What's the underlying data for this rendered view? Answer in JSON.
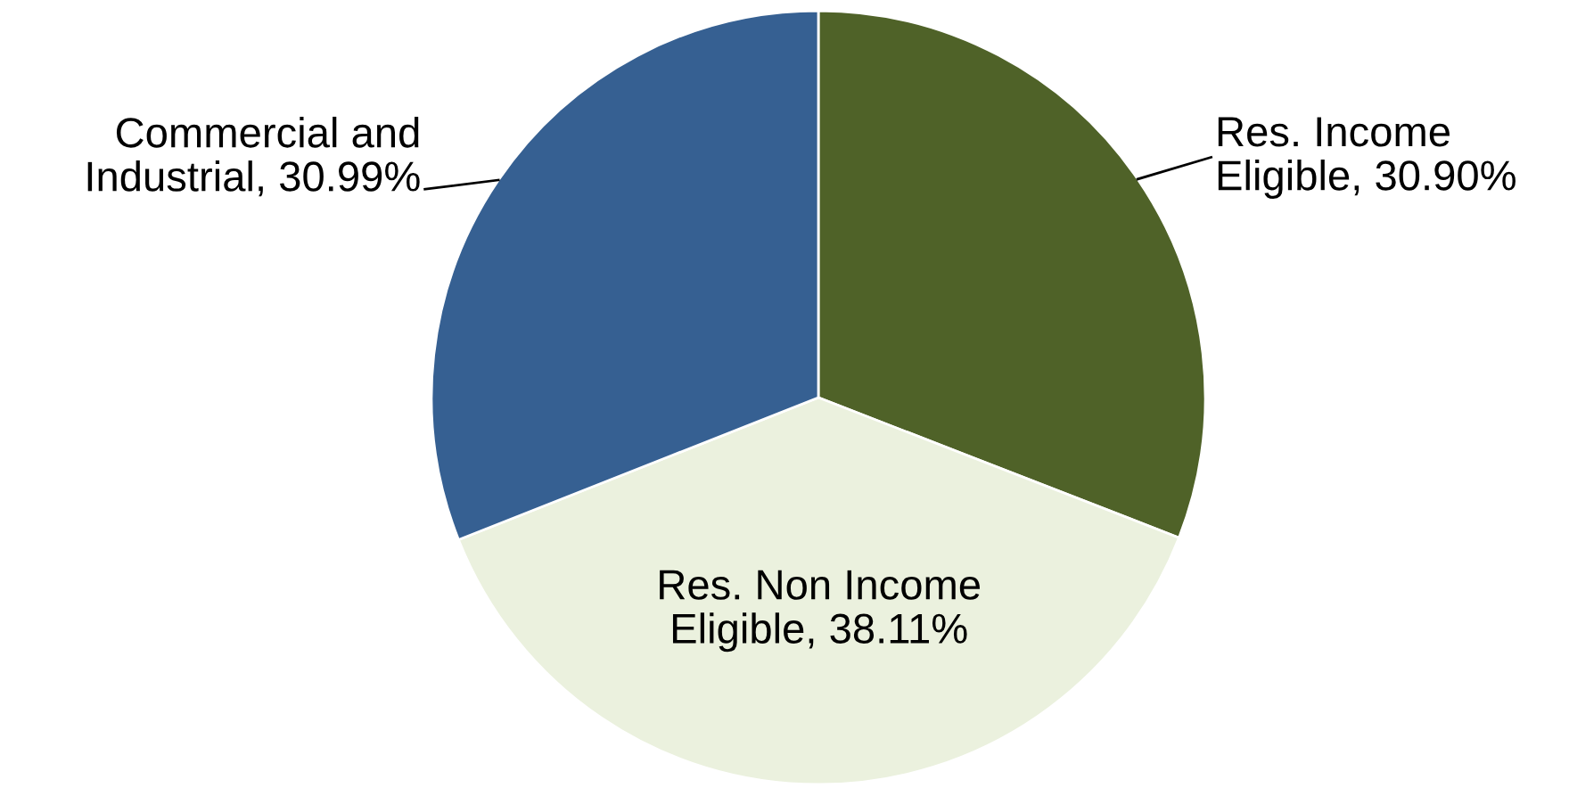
{
  "chart_data": {
    "type": "pie",
    "categories": [
      "Res. Income Eligible",
      "Res. Non Income Eligible",
      "Commercial and Industrial"
    ],
    "values": [
      30.9,
      38.11,
      30.99
    ],
    "value_labels": [
      "30.90%",
      "38.11%",
      "30.99%"
    ],
    "colors": [
      "#4f6228",
      "#ebf1de",
      "#366092"
    ],
    "legend": false
  }
}
